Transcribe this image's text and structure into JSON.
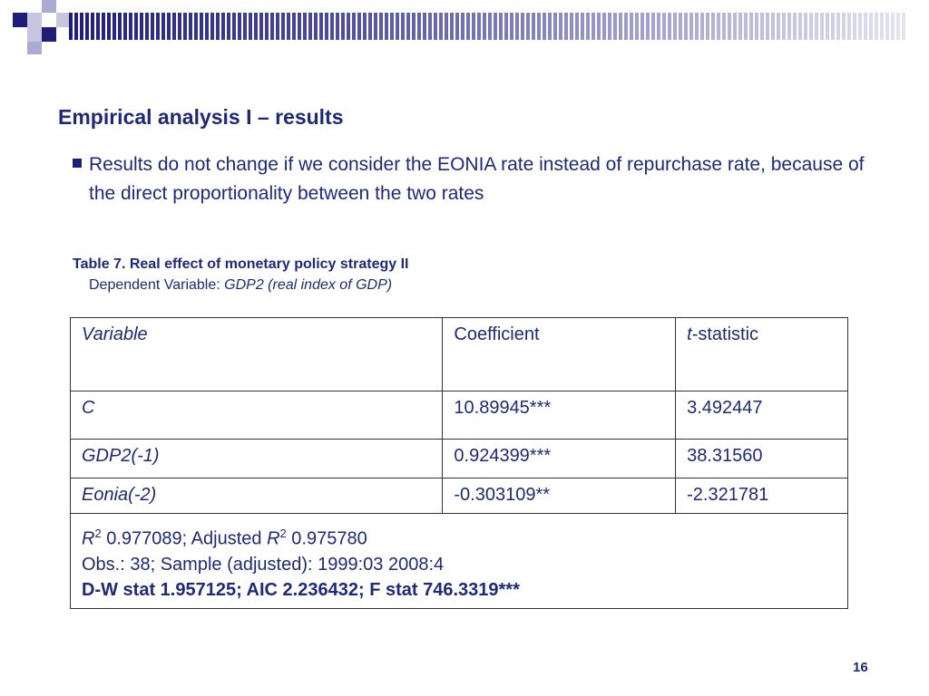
{
  "colors": {
    "title": "#1e2a78",
    "accent_navy": "#1e1e78",
    "accent_lavender": "#aaaad2"
  },
  "slide": {
    "title": "Empirical analysis I – results",
    "bullet": "Results do not change if we consider the EONIA rate instead of repurchase rate, because of the direct proportionality between the two rates",
    "page_number": "16"
  },
  "table": {
    "caption_title": "Table 7. Real effect of monetary policy strategy II",
    "caption_sub_prefix": "Dependent Variable: ",
    "caption_sub_italic": "GDP2 (real  index of GDP)",
    "headers": {
      "variable": "Variable",
      "coefficient": "Coefficient",
      "t_prefix": "t",
      "t_suffix": "-statistic"
    },
    "rows": [
      {
        "variable": "C",
        "coefficient": "10.89945***",
        "t_statistic": "3.492447"
      },
      {
        "variable": "GDP2(-1)",
        "coefficient": "0.924399***",
        "t_statistic": "38.31560"
      },
      {
        "variable": "Eonia(-2)",
        "coefficient": "-0.303109**",
        "t_statistic": "-2.321781"
      }
    ],
    "stats": {
      "r2_symbol": "R",
      "r2_exp": "2",
      "r2_value": " 0.977089; Adjusted ",
      "adj_r2_symbol": "R",
      "adj_r2_exp": "2",
      "adj_r2_value": " 0.975780",
      "obs_line": "Obs.: 38; Sample (adjusted): 1999:03 2008:4",
      "dw_line": "D-W stat 1.957125; AIC 2.236432; F stat 746.3319***"
    }
  }
}
